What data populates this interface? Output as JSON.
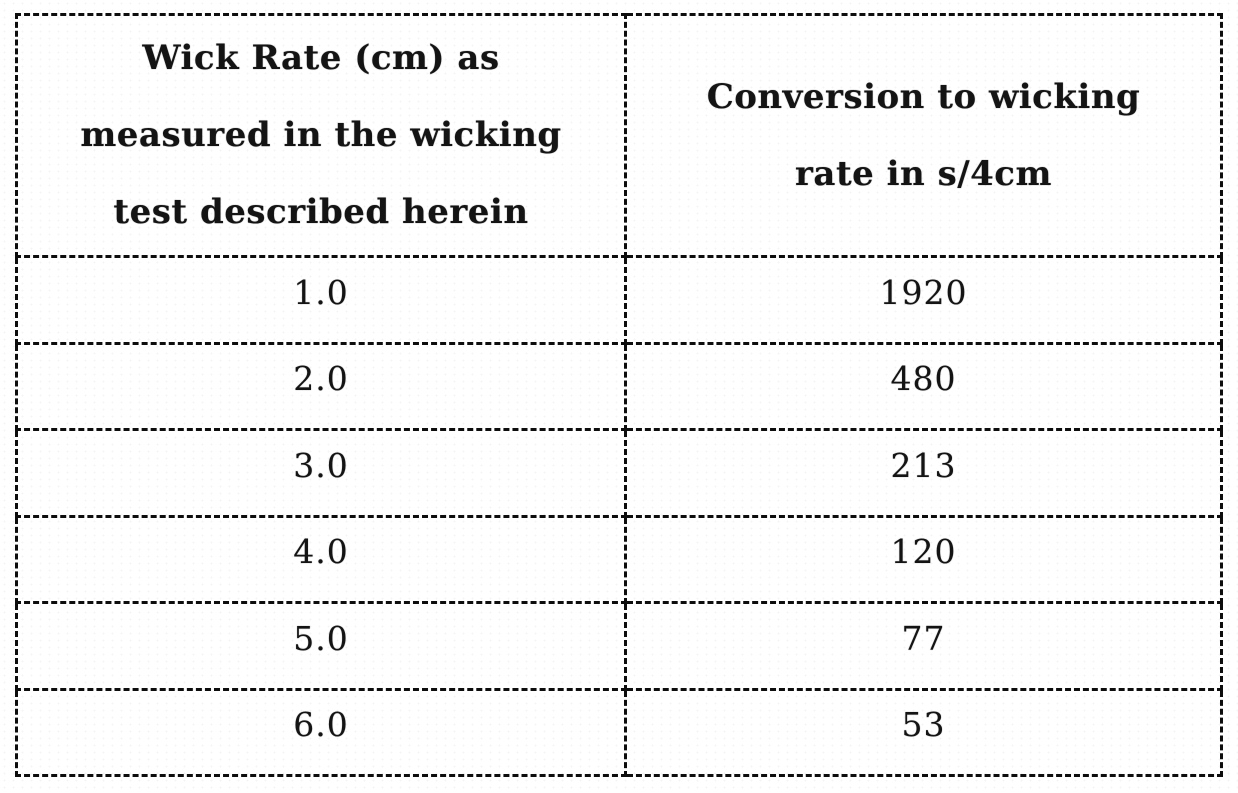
{
  "page": {
    "background_color": "#ffffff",
    "ink_color": "#141414",
    "border_style": "dashed-black-scan"
  },
  "table": {
    "header": {
      "left": "Wick Rate (cm) as measured in the wicking test described herein",
      "left_lines": [
        "Wick Rate (cm) as",
        "measured in the wicking",
        "test described herein"
      ],
      "right": "Conversion to wicking rate in s/4cm",
      "right_lines": [
        "Conversion to wicking",
        "rate in s/4cm"
      ]
    },
    "rows": [
      {
        "wick_rate": "1.0",
        "conversion": "1920"
      },
      {
        "wick_rate": "2.0",
        "conversion": "480"
      },
      {
        "wick_rate": "3.0",
        "conversion": "213"
      },
      {
        "wick_rate": "4.0",
        "conversion": "120"
      },
      {
        "wick_rate": "5.0",
        "conversion": "77"
      },
      {
        "wick_rate": "6.0",
        "conversion": "53"
      }
    ]
  },
  "chart_data": {
    "type": "table",
    "columns": [
      "Wick Rate (cm) as measured in the wicking test described herein",
      "Conversion to wicking rate in s/4cm"
    ],
    "rows": [
      [
        "1.0",
        "1920"
      ],
      [
        "2.0",
        "480"
      ],
      [
        "3.0",
        "213"
      ],
      [
        "4.0",
        "120"
      ],
      [
        "5.0",
        "77"
      ],
      [
        "6.0",
        "53"
      ]
    ]
  }
}
